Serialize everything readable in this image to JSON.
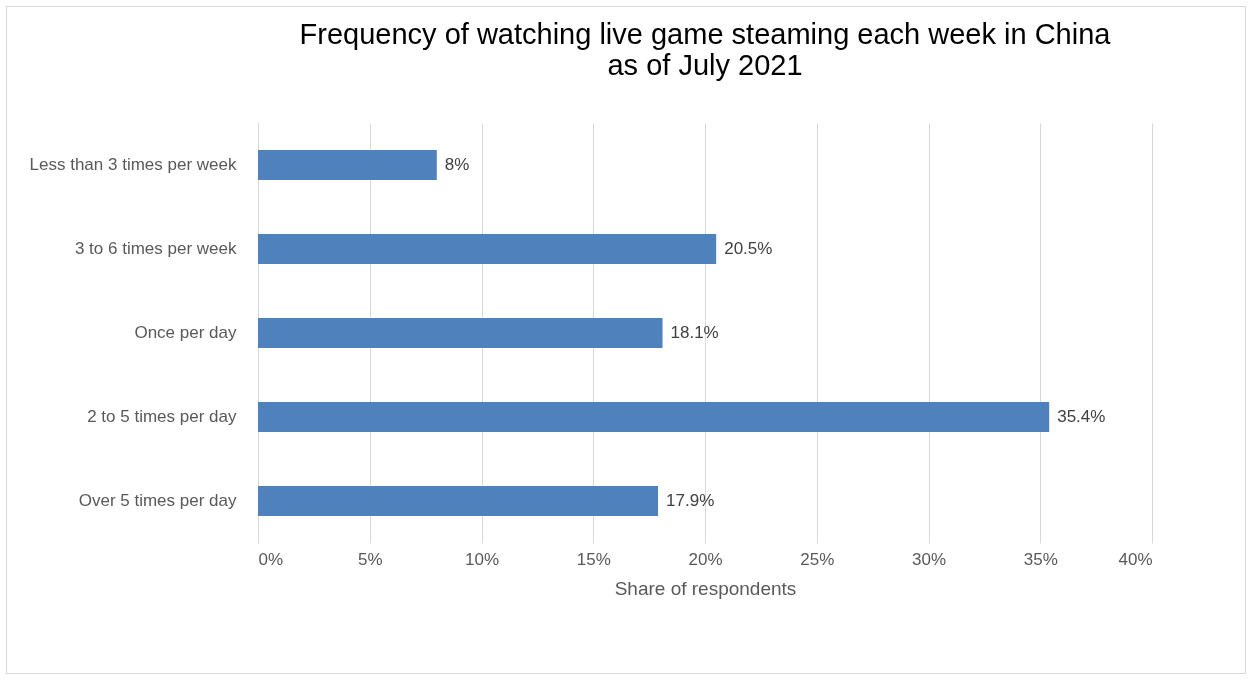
{
  "chart_data": {
    "type": "bar",
    "orientation": "horizontal",
    "title": "Frequency of watching live game steaming each week in China\nas of July 2021",
    "xlabel": "Share of respondents",
    "categories": [
      "Less than 3 times per week",
      "3 to 6 times per week",
      "Once per day",
      "2 to 5 times per day",
      "Over 5 times per day"
    ],
    "values": [
      8,
      20.5,
      18.1,
      35.4,
      17.9
    ],
    "value_labels": [
      "8%",
      "20.5%",
      "18.1%",
      "35.4%",
      "17.9%"
    ],
    "color": "#4f81bd",
    "xlim": [
      0,
      40
    ],
    "xticks": [
      {
        "value": 0,
        "label": "0%"
      },
      {
        "value": 5,
        "label": "5%"
      },
      {
        "value": 10,
        "label": "10%"
      },
      {
        "value": 15,
        "label": "15%"
      },
      {
        "value": 20,
        "label": "20%"
      },
      {
        "value": 25,
        "label": "25%"
      },
      {
        "value": 30,
        "label": "30%"
      },
      {
        "value": 35,
        "label": "35%"
      },
      {
        "value": 40,
        "label": "40%"
      }
    ],
    "grid": "x"
  }
}
